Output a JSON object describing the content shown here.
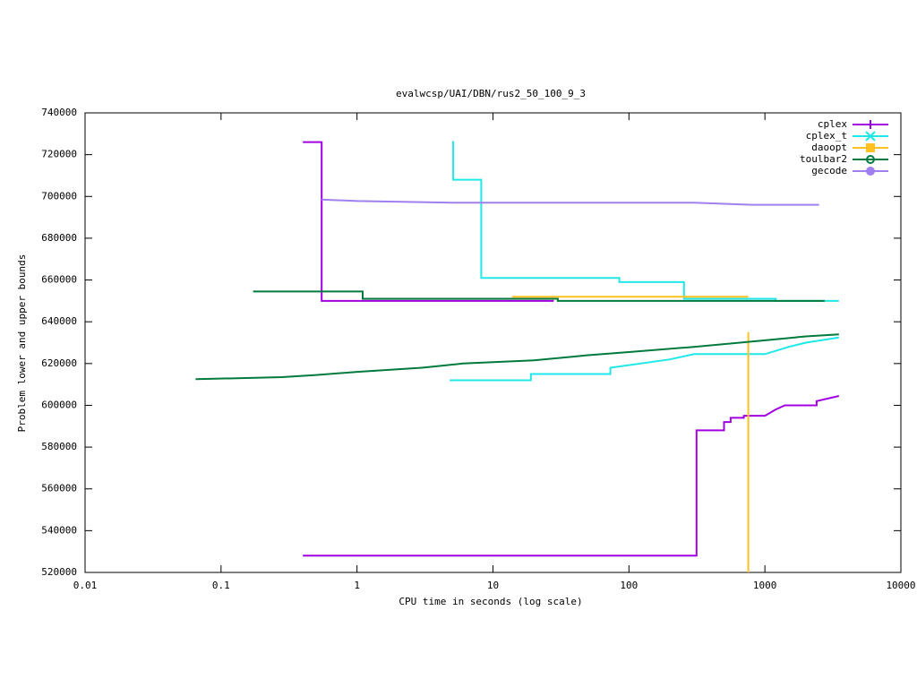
{
  "chart_data": {
    "type": "line",
    "title": "evalwcsp/UAI/DBN/rus2_50_100_9_3",
    "xlabel": "CPU time in seconds (log scale)",
    "ylabel": "Problem lower and upper bounds",
    "xscale": "log",
    "xlim": [
      0.01,
      10000
    ],
    "xticks": [
      0.01,
      0.1,
      1,
      10,
      100,
      1000,
      10000
    ],
    "ylim": [
      520000,
      740000
    ],
    "yticks": [
      520000,
      540000,
      560000,
      580000,
      600000,
      620000,
      640000,
      660000,
      680000,
      700000,
      720000,
      740000
    ],
    "grid": false,
    "legend": "top-right",
    "series": [
      {
        "name": "cplex",
        "color": "#a000e0",
        "marker": "plus",
        "x": [
          0.4,
          0.55,
          0.55,
          28,
          null,
          0.4,
          314,
          314,
          500,
          500,
          560,
          560,
          700,
          700,
          1000,
          1200,
          1400,
          2400,
          2400,
          3500
        ],
        "values": [
          726000,
          726000,
          650000,
          650000,
          null,
          528000,
          528000,
          588000,
          588000,
          592000,
          592000,
          594000,
          594000,
          595000,
          595000,
          598000,
          600000,
          600000,
          602000,
          604500
        ]
      },
      {
        "name": "cplex_t",
        "color": "#20e8e8",
        "marker": "cross",
        "x": [
          5,
          5.1,
          5.1,
          8.2,
          8.2,
          85,
          85,
          254,
          254,
          1200,
          1200,
          3500,
          null,
          4.8,
          19,
          19,
          73,
          73,
          200,
          300,
          1000,
          1500,
          2000,
          3500
        ],
        "values": [
          726000,
          726000,
          708000,
          708000,
          661000,
          661000,
          659000,
          659000,
          651000,
          651000,
          650000,
          650000,
          null,
          612000,
          612000,
          615000,
          615000,
          618000,
          622000,
          624500,
          624500,
          628000,
          630000,
          632500
        ]
      },
      {
        "name": "daoopt",
        "color": "#ffc020",
        "marker": "square",
        "x": [
          13.8,
          755,
          null,
          755,
          755
        ],
        "values": [
          652000,
          652000,
          null,
          635000,
          520000
        ]
      },
      {
        "name": "toulbar2",
        "color": "#007a3d",
        "marker": "circle",
        "x": [
          0.172,
          1.1,
          1.1,
          30,
          30,
          2750,
          null,
          0.065,
          0.28,
          0.5,
          1,
          3,
          6,
          20,
          50,
          100,
          300,
          800,
          2000,
          3500
        ],
        "values": [
          654500,
          654500,
          651000,
          651000,
          650000,
          650000,
          null,
          612500,
          613500,
          614500,
          616000,
          618000,
          620000,
          621500,
          624000,
          625500,
          628000,
          630500,
          633000,
          634000
        ]
      },
      {
        "name": "gecode",
        "color": "#a080f0",
        "marker": "filled-circle",
        "x": [
          0.55,
          1,
          5,
          300,
          800,
          2500
        ],
        "values": [
          698500,
          697800,
          697000,
          697000,
          696000,
          696000
        ]
      }
    ]
  }
}
